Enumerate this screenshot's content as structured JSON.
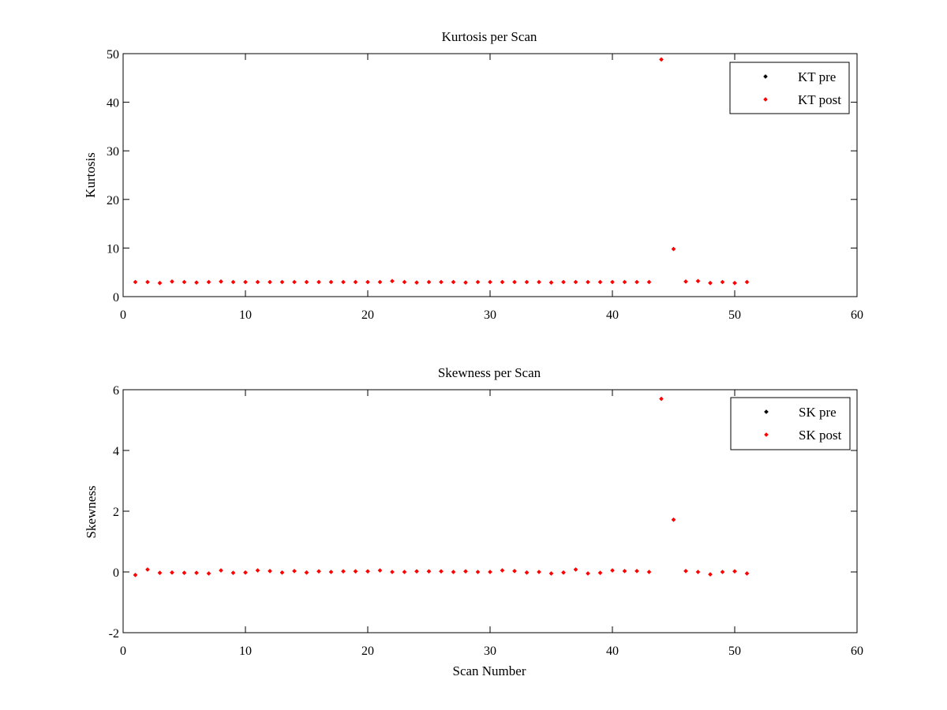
{
  "figure": {
    "background": "#ffffff",
    "axes_color": "#000000"
  },
  "chart_data": [
    {
      "type": "scatter",
      "title": "Kurtosis per Scan",
      "xlabel": "",
      "ylabel": "Kurtosis",
      "xlim": [
        0,
        60
      ],
      "ylim": [
        0,
        50
      ],
      "xticks": [
        0,
        10,
        20,
        30,
        40,
        50,
        60
      ],
      "yticks": [
        0,
        10,
        20,
        30,
        40,
        50
      ],
      "grid": false,
      "legend_position": "top-right",
      "series": [
        {
          "name": "KT pre",
          "color": "#000000",
          "marker": "diamond",
          "x": [],
          "y": []
        },
        {
          "name": "KT post",
          "color": "#ff0000",
          "marker": "diamond",
          "x": [
            1,
            2,
            3,
            4,
            5,
            6,
            7,
            8,
            9,
            10,
            11,
            12,
            13,
            14,
            15,
            16,
            17,
            18,
            19,
            20,
            21,
            22,
            23,
            24,
            25,
            26,
            27,
            28,
            29,
            30,
            31,
            32,
            33,
            34,
            35,
            36,
            37,
            38,
            39,
            40,
            41,
            42,
            43,
            44,
            45,
            46,
            47,
            48,
            49,
            50,
            51
          ],
          "y": [
            3.0,
            3.0,
            2.8,
            3.1,
            3.0,
            2.9,
            3.0,
            3.1,
            3.0,
            3.0,
            3.0,
            3.0,
            3.0,
            3.0,
            3.0,
            3.0,
            3.0,
            3.0,
            3.0,
            3.0,
            3.0,
            3.2,
            3.0,
            2.9,
            3.0,
            3.0,
            3.0,
            2.9,
            3.0,
            3.0,
            3.0,
            3.0,
            3.0,
            3.0,
            2.9,
            3.0,
            3.0,
            3.0,
            3.0,
            3.0,
            3.0,
            3.0,
            3.0,
            48.8,
            9.8,
            3.1,
            3.2,
            2.8,
            3.0,
            2.8,
            3.0
          ]
        }
      ]
    },
    {
      "type": "scatter",
      "title": "Skewness per Scan",
      "xlabel": "Scan Number",
      "ylabel": "Skewness",
      "xlim": [
        0,
        60
      ],
      "ylim": [
        -2,
        6
      ],
      "xticks": [
        0,
        10,
        20,
        30,
        40,
        50,
        60
      ],
      "yticks": [
        -2,
        0,
        2,
        4,
        6
      ],
      "grid": false,
      "legend_position": "top-right",
      "series": [
        {
          "name": "SK pre",
          "color": "#000000",
          "marker": "diamond",
          "x": [],
          "y": []
        },
        {
          "name": "SK post",
          "color": "#ff0000",
          "marker": "diamond",
          "x": [
            1,
            2,
            3,
            4,
            5,
            6,
            7,
            8,
            9,
            10,
            11,
            12,
            13,
            14,
            15,
            16,
            17,
            18,
            19,
            20,
            21,
            22,
            23,
            24,
            25,
            26,
            27,
            28,
            29,
            30,
            31,
            32,
            33,
            34,
            35,
            36,
            37,
            38,
            39,
            40,
            41,
            42,
            43,
            44,
            45,
            46,
            47,
            48,
            49,
            50,
            51
          ],
          "y": [
            -0.1,
            0.08,
            -0.03,
            -0.02,
            -0.03,
            -0.03,
            -0.05,
            0.05,
            -0.03,
            -0.02,
            0.05,
            0.03,
            -0.02,
            0.03,
            -0.02,
            0.02,
            0.0,
            0.02,
            0.02,
            0.02,
            0.05,
            0.0,
            0.0,
            0.02,
            0.02,
            0.02,
            0.0,
            0.02,
            0.0,
            0.0,
            0.05,
            0.03,
            -0.02,
            0.0,
            -0.05,
            -0.02,
            0.08,
            -0.05,
            -0.03,
            0.05,
            0.03,
            0.03,
            0.0,
            5.7,
            1.72,
            0.03,
            0.0,
            -0.08,
            0.0,
            0.02,
            -0.05
          ]
        }
      ]
    }
  ]
}
